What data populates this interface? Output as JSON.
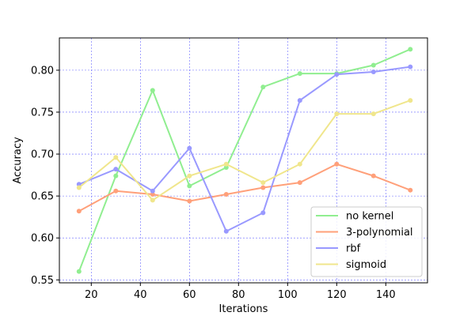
{
  "chart_data": {
    "type": "line",
    "title": "",
    "xlabel": "Iterations",
    "ylabel": "Accuracy",
    "xlim": [
      7,
      157
    ],
    "ylim": [
      0.5465,
      0.8385
    ],
    "x_ticks": [
      20,
      40,
      60,
      80,
      100,
      120,
      140
    ],
    "y_ticks": [
      0.55,
      0.6,
      0.65,
      0.7,
      0.75,
      0.8
    ],
    "x_tick_labels": [
      "20",
      "40",
      "60",
      "80",
      "100",
      "120",
      "140"
    ],
    "y_tick_labels": [
      "0.55",
      "0.60",
      "0.65",
      "0.70",
      "0.75",
      "0.80"
    ],
    "grid": true,
    "grid_color": "#6666ff",
    "legend_position": "lower-right",
    "x": [
      15,
      30,
      45,
      60,
      75,
      90,
      105,
      120,
      135,
      150
    ],
    "series": [
      {
        "name": "no kernel",
        "color": "#90ee90",
        "values": [
          0.56,
          0.674,
          0.776,
          0.662,
          0.684,
          0.78,
          0.796,
          0.796,
          0.806,
          0.825
        ]
      },
      {
        "name": "3-polynomial",
        "color": "#ffa07a",
        "values": [
          0.632,
          0.656,
          0.652,
          0.644,
          0.652,
          0.66,
          0.666,
          0.688,
          0.674,
          0.657
        ]
      },
      {
        "name": "rbf",
        "color": "#9999ff",
        "values": [
          0.664,
          0.682,
          0.656,
          0.707,
          0.608,
          0.63,
          0.764,
          0.795,
          0.798,
          0.804
        ]
      },
      {
        "name": "sigmoid",
        "color": "#f0e68c",
        "values": [
          0.66,
          0.696,
          0.645,
          0.674,
          0.688,
          0.666,
          0.688,
          0.748,
          0.748,
          0.764
        ]
      }
    ]
  }
}
